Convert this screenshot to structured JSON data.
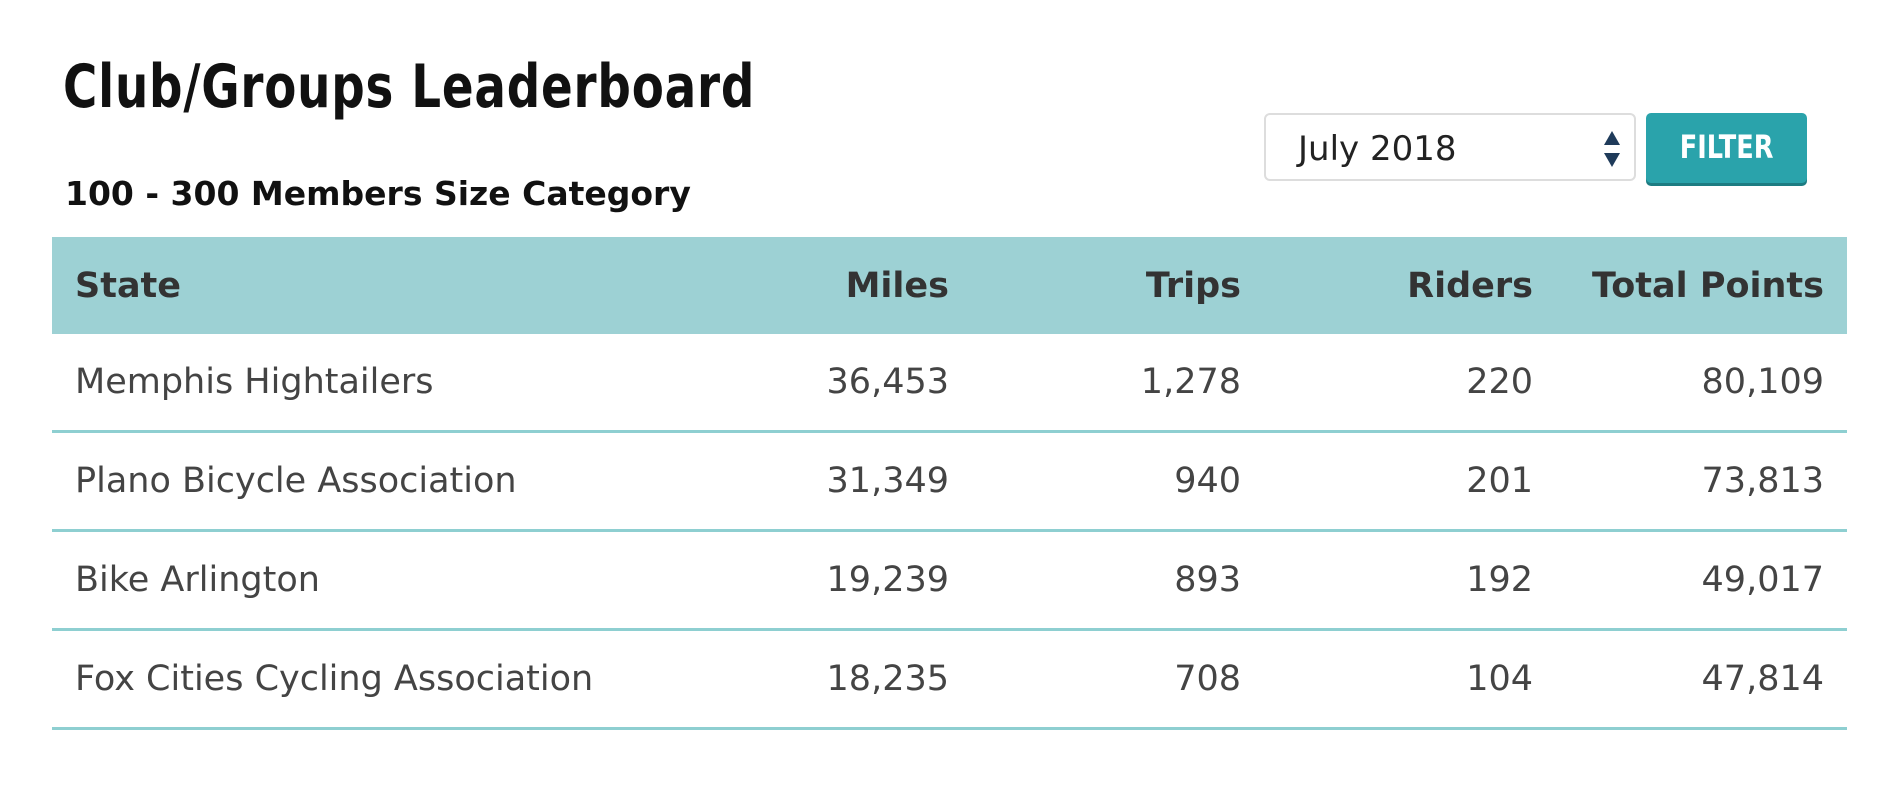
{
  "header": {
    "title": "Club/Groups Leaderboard",
    "subtitle": "100 - 300 Members Size Category"
  },
  "filter": {
    "selected": "July 2018",
    "button": "FILTER"
  },
  "table": {
    "columns": [
      "State",
      "Miles",
      "Trips",
      "Riders",
      "Total Points"
    ],
    "rows": [
      [
        "Memphis Hightailers",
        "36,453",
        "1,278",
        "220",
        "80,109"
      ],
      [
        "Plano Bicycle Association",
        "31,349",
        "940",
        "201",
        "73,813"
      ],
      [
        "Bike Arlington",
        "19,239",
        "893",
        "192",
        "49,017"
      ],
      [
        "Fox Cities Cycling Association",
        "18,235",
        "708",
        "104",
        "47,814"
      ]
    ]
  }
}
